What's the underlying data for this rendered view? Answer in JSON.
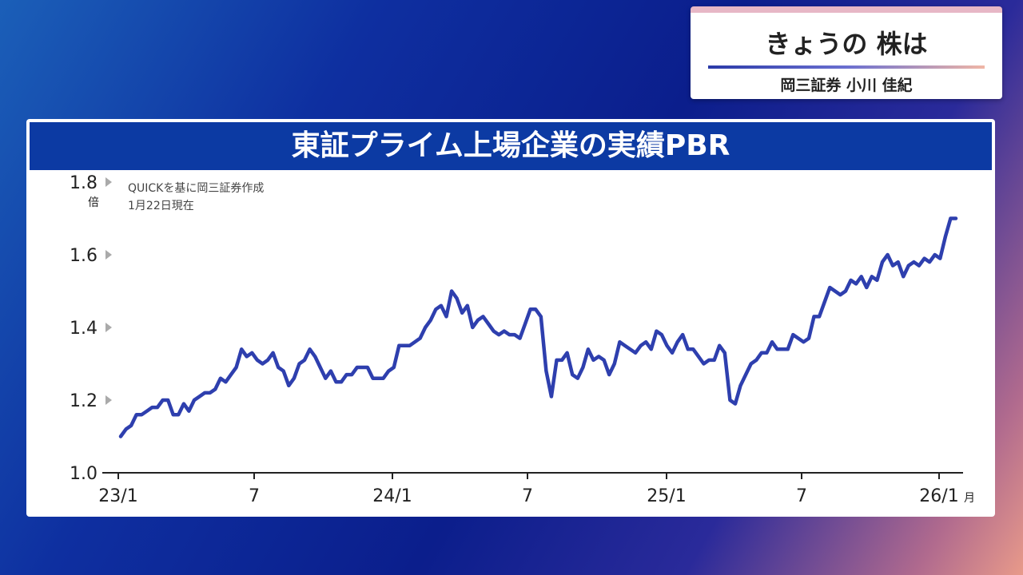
{
  "header": {
    "title": "きょうの 株は",
    "presenter": "岡三証券 小川 佳紀"
  },
  "chart_data": {
    "type": "line",
    "title": "東証プライム上場企業の実績PBR",
    "y_unit": "倍",
    "x_unit": "月",
    "ylim": [
      1.0,
      1.8
    ],
    "y_ticks": [
      "1.0",
      "1.2",
      "1.4",
      "1.6",
      "1.8"
    ],
    "x_tick_labels": [
      "23/1",
      "7",
      "24/1",
      "7",
      "25/1",
      "7",
      "26/1"
    ],
    "x_range": [
      "2023-01",
      "2026-01"
    ],
    "annotations": [
      "QUICKを基に岡三証券作成",
      "1月22日現在"
    ],
    "grid": false,
    "colors": {
      "line": "#2e3fae"
    },
    "series": [
      {
        "values": [
          1.1,
          1.12,
          1.13,
          1.16,
          1.16,
          1.17,
          1.18,
          1.18,
          1.2,
          1.2,
          1.16,
          1.16,
          1.19,
          1.17,
          1.2,
          1.21,
          1.22,
          1.22,
          1.23,
          1.26,
          1.25,
          1.27,
          1.29,
          1.34,
          1.32,
          1.33,
          1.31,
          1.3,
          1.31,
          1.33,
          1.29,
          1.28,
          1.24,
          1.26,
          1.3,
          1.31,
          1.34,
          1.32,
          1.29,
          1.26,
          1.28,
          1.25,
          1.25,
          1.27,
          1.27,
          1.29,
          1.29,
          1.29,
          1.26,
          1.26,
          1.26,
          1.28,
          1.29,
          1.35,
          1.35,
          1.35,
          1.36,
          1.37,
          1.4,
          1.42,
          1.45,
          1.46,
          1.43,
          1.5,
          1.48,
          1.44,
          1.46,
          1.4,
          1.42,
          1.43,
          1.41,
          1.39,
          1.38,
          1.39,
          1.38,
          1.38,
          1.37,
          1.41,
          1.45,
          1.45,
          1.43,
          1.28,
          1.21,
          1.31,
          1.31,
          1.33,
          1.27,
          1.26,
          1.29,
          1.34,
          1.31,
          1.32,
          1.31,
          1.27,
          1.3,
          1.36,
          1.35,
          1.34,
          1.33,
          1.35,
          1.36,
          1.34,
          1.39,
          1.38,
          1.35,
          1.33,
          1.36,
          1.38,
          1.34,
          1.34,
          1.32,
          1.3,
          1.31,
          1.31,
          1.35,
          1.33,
          1.2,
          1.19,
          1.24,
          1.27,
          1.3,
          1.31,
          1.33,
          1.33,
          1.36,
          1.34,
          1.34,
          1.34,
          1.38,
          1.37,
          1.36,
          1.37,
          1.43,
          1.43,
          1.47,
          1.51,
          1.5,
          1.49,
          1.5,
          1.53,
          1.52,
          1.54,
          1.51,
          1.54,
          1.53,
          1.58,
          1.6,
          1.57,
          1.58,
          1.54,
          1.57,
          1.58,
          1.57,
          1.59,
          1.58,
          1.6,
          1.59,
          1.65,
          1.7,
          1.7
        ]
      }
    ]
  }
}
